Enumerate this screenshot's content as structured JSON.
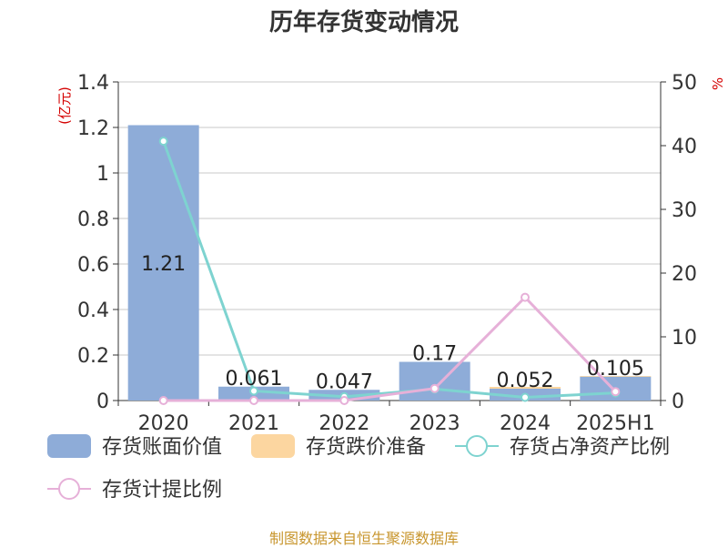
{
  "title": "历年存货变动情况",
  "source": "制图数据来自恒生聚源数据库",
  "chart_data": {
    "type": "bar",
    "categories": [
      "2020",
      "2021",
      "2022",
      "2023",
      "2024",
      "2025H1"
    ],
    "y_left": {
      "label": "(亿元)",
      "lim": [
        0,
        1.4
      ],
      "ticks": [
        "0",
        "0.2",
        "0.4",
        "0.6",
        "0.8",
        "1",
        "1.2",
        "1.4"
      ]
    },
    "y_right": {
      "label": "%",
      "lim": [
        0,
        50
      ],
      "ticks": [
        "0",
        "10",
        "20",
        "30",
        "40",
        "50"
      ]
    },
    "grid": true,
    "legend_position": "bottom",
    "series": [
      {
        "name": "存货账面价值",
        "kind": "bar",
        "axis": "left",
        "color": "#8eacd8",
        "values": [
          1.21,
          0.061,
          0.047,
          0.17,
          0.052,
          0.105
        ],
        "data_labels": [
          "1.21",
          "0.061",
          "0.047",
          "0.17",
          "0.052",
          "0.105"
        ]
      },
      {
        "name": "存货跌价准备",
        "kind": "bar",
        "axis": "left",
        "color": "#fcd6a0",
        "values": [
          0,
          0,
          0,
          0,
          0.008,
          0.003
        ]
      },
      {
        "name": "存货占净资产比例",
        "kind": "line",
        "axis": "right",
        "color": "#7ed3d0",
        "values": [
          40.7,
          1.5,
          0.6,
          1.8,
          0.5,
          1.2
        ]
      },
      {
        "name": "存货计提比例",
        "kind": "line",
        "axis": "right",
        "color": "#e6b0d8",
        "values": [
          0,
          0,
          0,
          1.9,
          16.2,
          1.4
        ]
      }
    ]
  }
}
